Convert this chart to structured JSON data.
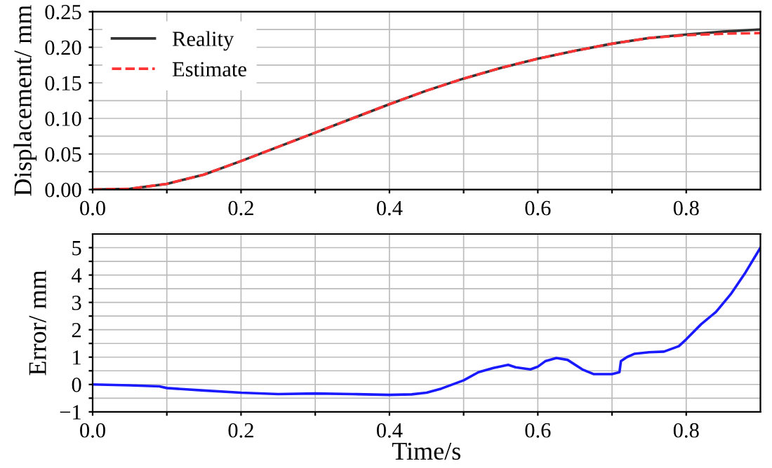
{
  "chart_data": [
    {
      "type": "line",
      "ylabel": "Displacement/ mm",
      "legend": "top left",
      "grid": true,
      "x": [
        0,
        0.05,
        0.1,
        0.15,
        0.2,
        0.25,
        0.3,
        0.35,
        0.4,
        0.45,
        0.5,
        0.55,
        0.6,
        0.65,
        0.7,
        0.75,
        0.8,
        0.85,
        0.9
      ],
      "series": [
        {
          "name": "Reality",
          "color": "#333333",
          "line_style": "solid",
          "values": [
            0,
            0.001,
            0.008,
            0.021,
            0.04,
            0.06,
            0.08,
            0.1,
            0.12,
            0.139,
            0.156,
            0.171,
            0.184,
            0.195,
            0.205,
            0.213,
            0.218,
            0.222,
            0.225
          ]
        },
        {
          "name": "Estimate",
          "color": "#ff3333",
          "line_style": "dashed",
          "values": [
            0,
            0.001,
            0.008,
            0.021,
            0.04,
            0.06,
            0.08,
            0.1,
            0.12,
            0.139,
            0.156,
            0.171,
            0.184,
            0.195,
            0.205,
            0.213,
            0.217,
            0.219,
            0.22
          ]
        }
      ],
      "xlim": [
        0,
        0.9
      ],
      "xticks": [
        {
          "value": 0,
          "label": "0.0"
        },
        {
          "value": 0.1,
          "label": null
        },
        {
          "value": 0.2,
          "label": "0.2"
        },
        {
          "value": 0.3,
          "label": null
        },
        {
          "value": 0.4,
          "label": "0.4"
        },
        {
          "value": 0.5,
          "label": null
        },
        {
          "value": 0.6,
          "label": "0.6"
        },
        {
          "value": 0.7,
          "label": null
        },
        {
          "value": 0.8,
          "label": "0.8"
        }
      ],
      "ylim": [
        0,
        0.25
      ],
      "yticks": [
        {
          "value": 0,
          "label": "0.00"
        },
        {
          "value": 0.025,
          "label": null
        },
        {
          "value": 0.05,
          "label": "0.05"
        },
        {
          "value": 0.075,
          "label": null
        },
        {
          "value": 0.1,
          "label": "0.10"
        },
        {
          "value": 0.125,
          "label": null
        },
        {
          "value": 0.15,
          "label": "0.15"
        },
        {
          "value": 0.175,
          "label": null
        },
        {
          "value": 0.2,
          "label": "0.20"
        },
        {
          "value": 0.225,
          "label": null
        },
        {
          "value": 0.25,
          "label": "0.25"
        }
      ]
    },
    {
      "type": "line",
      "xlabel": "Time/s",
      "ylabel": "Error/ mm",
      "grid": true,
      "x": [
        0,
        0.05,
        0.07,
        0.09,
        0.1,
        0.15,
        0.2,
        0.25,
        0.3,
        0.35,
        0.4,
        0.43,
        0.45,
        0.47,
        0.5,
        0.52,
        0.54,
        0.56,
        0.57,
        0.59,
        0.6,
        0.61,
        0.625,
        0.64,
        0.66,
        0.675,
        0.7,
        0.71,
        0.712,
        0.72,
        0.73,
        0.75,
        0.77,
        0.79,
        0.8,
        0.82,
        0.84,
        0.86,
        0.88,
        0.9
      ],
      "series": [
        {
          "color": "#1a1aff",
          "line_style": "solid",
          "values": [
            0,
            -0.03,
            -0.05,
            -0.07,
            -0.13,
            -0.22,
            -0.3,
            -0.35,
            -0.33,
            -0.35,
            -0.38,
            -0.36,
            -0.3,
            -0.15,
            0.15,
            0.45,
            0.6,
            0.72,
            0.63,
            0.55,
            0.65,
            0.85,
            0.97,
            0.9,
            0.55,
            0.38,
            0.38,
            0.45,
            0.85,
            1.0,
            1.12,
            1.18,
            1.2,
            1.4,
            1.65,
            2.2,
            2.65,
            3.3,
            4.1,
            5.0
          ]
        }
      ],
      "xlim": [
        0,
        0.9
      ],
      "xticks": [
        {
          "value": 0,
          "label": "0.0"
        },
        {
          "value": 0.1,
          "label": null
        },
        {
          "value": 0.2,
          "label": "0.2"
        },
        {
          "value": 0.3,
          "label": null
        },
        {
          "value": 0.4,
          "label": "0.4"
        },
        {
          "value": 0.5,
          "label": null
        },
        {
          "value": 0.6,
          "label": "0.6"
        },
        {
          "value": 0.7,
          "label": null
        },
        {
          "value": 0.8,
          "label": "0.8"
        }
      ],
      "ylim": [
        -1,
        5.5
      ],
      "yticks": [
        {
          "value": -1,
          "label": "−1"
        },
        {
          "value": -0.5,
          "label": null
        },
        0,
        {
          "value": 0.5,
          "label": null
        },
        1,
        {
          "value": 1.5,
          "label": null
        },
        2,
        {
          "value": 2.5,
          "label": null
        },
        3,
        {
          "value": 3.5,
          "label": null
        },
        4,
        {
          "value": 4.5,
          "label": null
        },
        5
      ]
    }
  ]
}
